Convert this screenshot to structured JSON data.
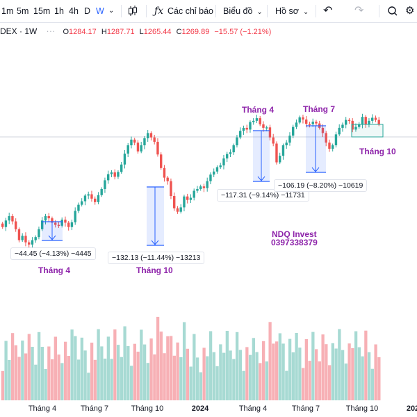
{
  "toolbar": {
    "timeframes": [
      "1m",
      "5m",
      "15m",
      "1h",
      "4h",
      "D",
      "W"
    ],
    "active_timeframe": "W",
    "indicators_label": "Các chỉ báo",
    "chart_menu_label": "Biểu đồ",
    "profile_label": "Hồ sơ"
  },
  "legend": {
    "symbol": "DEX · 1W",
    "open_label": "O",
    "open": "1284.17",
    "high_label": "H",
    "high": "1287.71",
    "low_label": "L",
    "low": "1265.44",
    "close_label": "C",
    "close": "1269.89",
    "change": "−15.57 (−1.21%)"
  },
  "annotations": {
    "measure_1": "−44.45 (−4.13%) −4445",
    "measure_2": "−132.13 (−11.44%) −13213",
    "measure_3": "−117.31 (−9.14%) −11731",
    "measure_4": "−106.19 (−8.20%) −10619",
    "label_t4_a": "Tháng 4",
    "label_t10_a": "Tháng 10",
    "label_t4_b": "Tháng 4",
    "label_t7": "Tháng 7",
    "label_t10_b": "Tháng 10",
    "watermark_name": "NDQ Invest",
    "watermark_phone": "0397338379"
  },
  "xaxis": {
    "labels": [
      "Tháng 4",
      "Tháng 7",
      "Tháng 10",
      "2024",
      "Tháng 4",
      "Tháng 7",
      "Tháng 10",
      "202"
    ]
  },
  "colors": {
    "up": "#26a69a",
    "down": "#ef5350",
    "accent": "#2962ff",
    "annotation_purple": "#8e24aa"
  },
  "chart_data": {
    "type": "candlestick",
    "symbol": "VNINDEX",
    "interval": "1W",
    "closes": [
      1035,
      1050,
      1060,
      1048,
      1030,
      1005,
      1015,
      1000,
      995,
      1005,
      1012,
      1030,
      1050,
      1060,
      1055,
      1045,
      1040,
      1038,
      1052,
      1045,
      1035,
      1046,
      1072,
      1086,
      1094,
      1107,
      1110,
      1100,
      1092,
      1108,
      1122,
      1142,
      1156,
      1160,
      1150,
      1161,
      1178,
      1203,
      1222,
      1235,
      1228,
      1208,
      1222,
      1238,
      1250,
      1240,
      1230,
      1201,
      1170,
      1148,
      1140,
      1106,
      1078,
      1070,
      1080,
      1105,
      1097,
      1102,
      1118,
      1122,
      1128,
      1124,
      1140,
      1155,
      1162,
      1172,
      1176,
      1192,
      1202,
      1206,
      1222,
      1240,
      1255,
      1262,
      1258,
      1275,
      1278,
      1284,
      1270,
      1262,
      1263,
      1240,
      1226,
      1183,
      1198,
      1222,
      1228,
      1244,
      1264,
      1274,
      1286,
      1281,
      1271,
      1270,
      1276,
      1272,
      1262,
      1250,
      1228,
      1214,
      1222,
      1247,
      1262,
      1269,
      1280,
      1278,
      1258,
      1264,
      1270,
      1287,
      1270,
      1278,
      1285,
      1280,
      1270
    ]
  }
}
